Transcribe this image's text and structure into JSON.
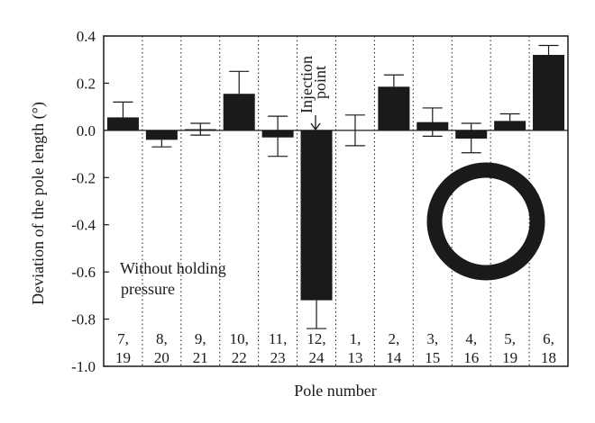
{
  "chart_data": {
    "type": "bar",
    "ylabel": "Deviation of the pole length (°)",
    "xlabel": "Pole number",
    "ylim": [
      -1.0,
      0.4
    ],
    "yticks": [
      "0.4",
      "0.2",
      "0.0",
      "-0.2",
      "-0.4",
      "-0.6",
      "-0.8",
      "-1.0"
    ],
    "ytick_values": [
      0.4,
      0.2,
      0.0,
      -0.2,
      -0.4,
      -0.6,
      -0.8,
      -1.0
    ],
    "categories": [
      [
        "7,",
        "19"
      ],
      [
        "8,",
        "20"
      ],
      [
        "9,",
        "21"
      ],
      [
        "10,",
        "22"
      ],
      [
        "11,",
        "23"
      ],
      [
        "12,",
        "24"
      ],
      [
        "1,",
        "13"
      ],
      [
        "2,",
        "14"
      ],
      [
        "3,",
        "15"
      ],
      [
        "4,",
        "16"
      ],
      [
        "5,",
        "19"
      ],
      [
        "6,",
        "18"
      ]
    ],
    "values": [
      0.055,
      -0.04,
      0.005,
      0.155,
      -0.03,
      -0.72,
      0.0,
      0.185,
      0.035,
      -0.035,
      0.04,
      0.32
    ],
    "error_upper": [
      0.12,
      null,
      0.03,
      0.25,
      0.06,
      null,
      0.065,
      0.235,
      0.095,
      0.03,
      0.07,
      0.36
    ],
    "error_lower": [
      null,
      -0.07,
      -0.02,
      null,
      -0.11,
      -0.84,
      -0.065,
      null,
      -0.025,
      -0.095,
      null,
      null
    ],
    "grid": "vertical dotted separators",
    "annotations": {
      "injection_line1": "Injection",
      "injection_line2": "point",
      "holding_line1": "Without holding",
      "holding_line2": "pressure"
    },
    "ring_color": "#1a1a1a",
    "bar_color": "#1a1a1a"
  }
}
